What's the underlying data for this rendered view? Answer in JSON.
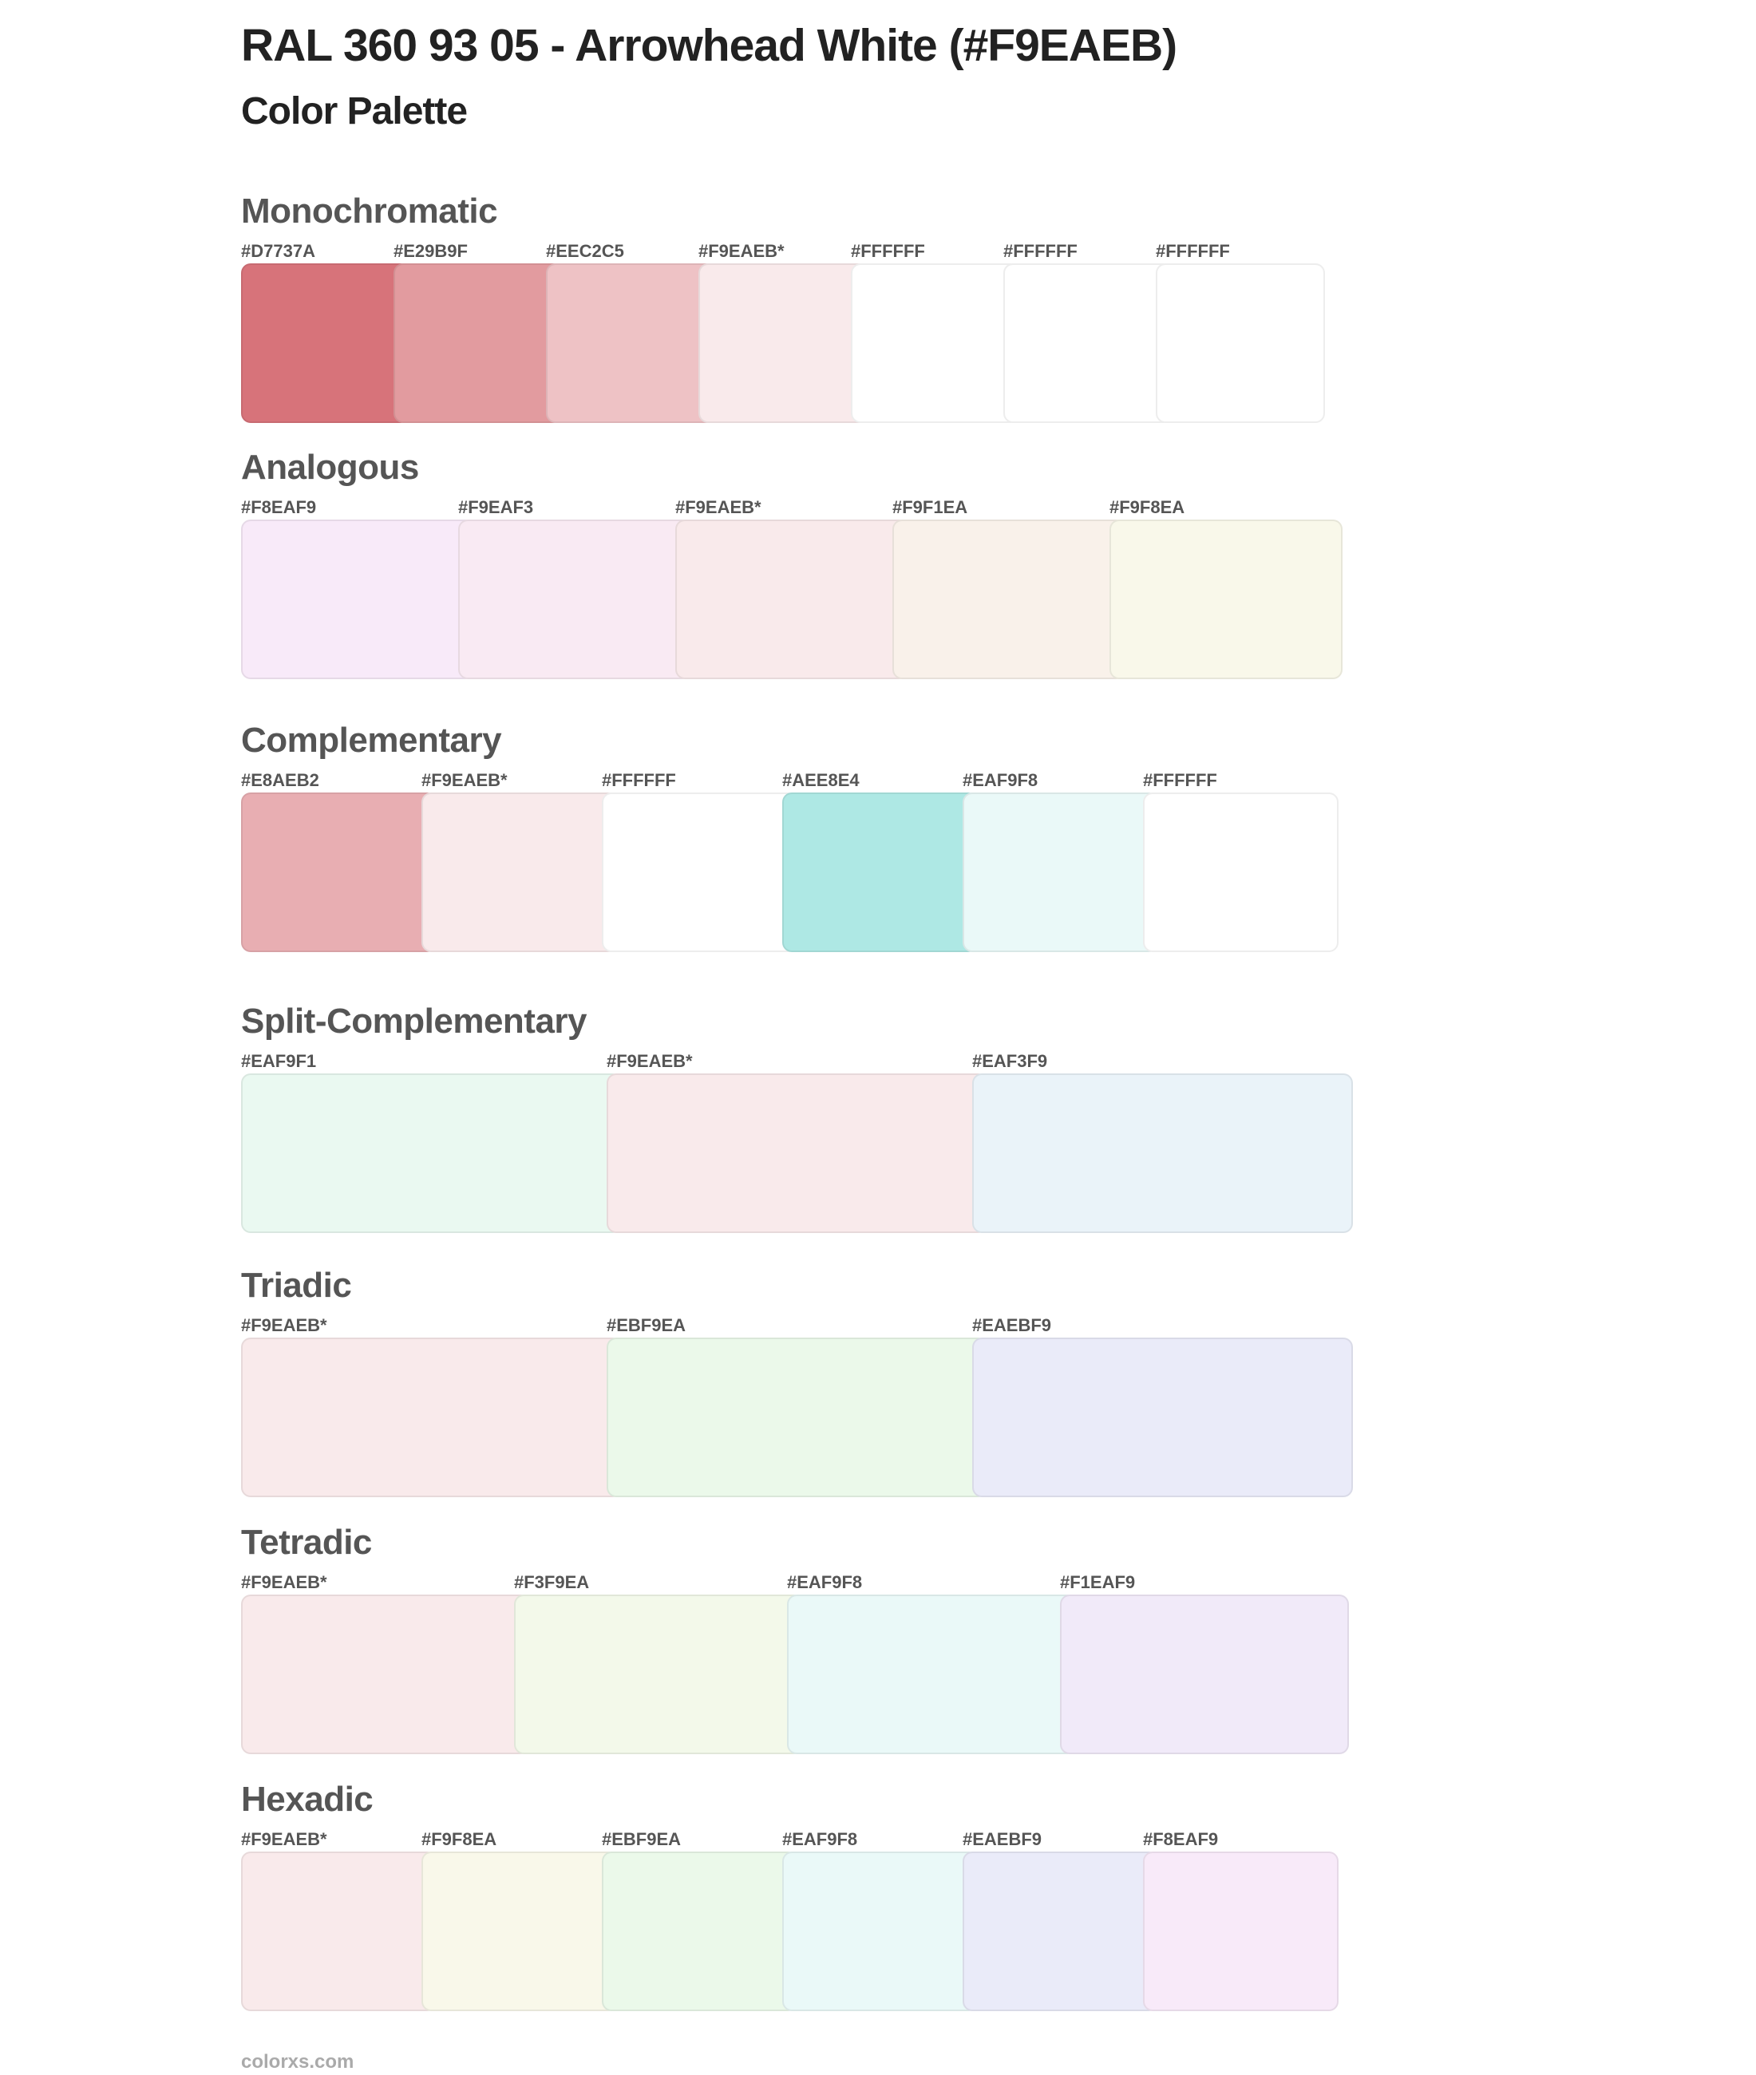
{
  "header": {
    "title": "RAL 360 93 05 - Arrowhead White (#F9EAEB)",
    "subtitle": "Color Palette"
  },
  "sections": [
    {
      "name": "Monochromatic",
      "swatches": [
        {
          "label": "#D7737A",
          "color": "#D7737A"
        },
        {
          "label": "#E29B9F",
          "color": "#E29B9F"
        },
        {
          "label": "#EEC2C5",
          "color": "#EEC2C5"
        },
        {
          "label": "#F9EAEB*",
          "color": "#F9EAEB"
        },
        {
          "label": "#FFFFFF",
          "color": "#FFFFFF"
        },
        {
          "label": "#FFFFFF",
          "color": "#FFFFFF"
        },
        {
          "label": "#FFFFFF",
          "color": "#FFFFFF"
        }
      ]
    },
    {
      "name": "Analogous",
      "swatches": [
        {
          "label": "#F8EAF9",
          "color": "#F8EAF9"
        },
        {
          "label": "#F9EAF3",
          "color": "#F9EAF3"
        },
        {
          "label": "#F9EAEB*",
          "color": "#F9EAEB"
        },
        {
          "label": "#F9F1EA",
          "color": "#F9F1EA"
        },
        {
          "label": "#F9F8EA",
          "color": "#F9F8EA"
        }
      ]
    },
    {
      "name": "Complementary",
      "swatches": [
        {
          "label": "#E8AEB2",
          "color": "#E8AEB2"
        },
        {
          "label": "#F9EAEB*",
          "color": "#F9EAEB"
        },
        {
          "label": "#FFFFFF",
          "color": "#FFFFFF"
        },
        {
          "label": "#AEE8E4",
          "color": "#AEE8E4"
        },
        {
          "label": "#EAF9F8",
          "color": "#EAF9F8"
        },
        {
          "label": "#FFFFFF",
          "color": "#FFFFFF"
        }
      ]
    },
    {
      "name": "Split-Complementary",
      "swatches": [
        {
          "label": "#EAF9F1",
          "color": "#EAF9F1"
        },
        {
          "label": "#F9EAEB*",
          "color": "#F9EAEB"
        },
        {
          "label": "#EAF3F9",
          "color": "#EAF3F9"
        }
      ]
    },
    {
      "name": "Triadic",
      "swatches": [
        {
          "label": "#F9EAEB*",
          "color": "#F9EAEB"
        },
        {
          "label": "#EBF9EA",
          "color": "#EBF9EA"
        },
        {
          "label": "#EAEBF9",
          "color": "#EAEBF9"
        }
      ]
    },
    {
      "name": "Tetradic",
      "swatches": [
        {
          "label": "#F9EAEB*",
          "color": "#F9EAEB"
        },
        {
          "label": "#F3F9EA",
          "color": "#F3F9EA"
        },
        {
          "label": "#EAF9F8",
          "color": "#EAF9F8"
        },
        {
          "label": "#F1EAF9",
          "color": "#F1EAF9"
        }
      ]
    },
    {
      "name": "Hexadic",
      "swatches": [
        {
          "label": "#F9EAEB*",
          "color": "#F9EAEB"
        },
        {
          "label": "#F9F8EA",
          "color": "#F9F8EA"
        },
        {
          "label": "#EBF9EA",
          "color": "#EBF9EA"
        },
        {
          "label": "#EAF9F8",
          "color": "#EAF9F8"
        },
        {
          "label": "#EAEBF9",
          "color": "#EAEBF9"
        },
        {
          "label": "#F8EAF9",
          "color": "#F8EAF9"
        }
      ]
    }
  ],
  "footer": {
    "site": "colorxs.com"
  }
}
